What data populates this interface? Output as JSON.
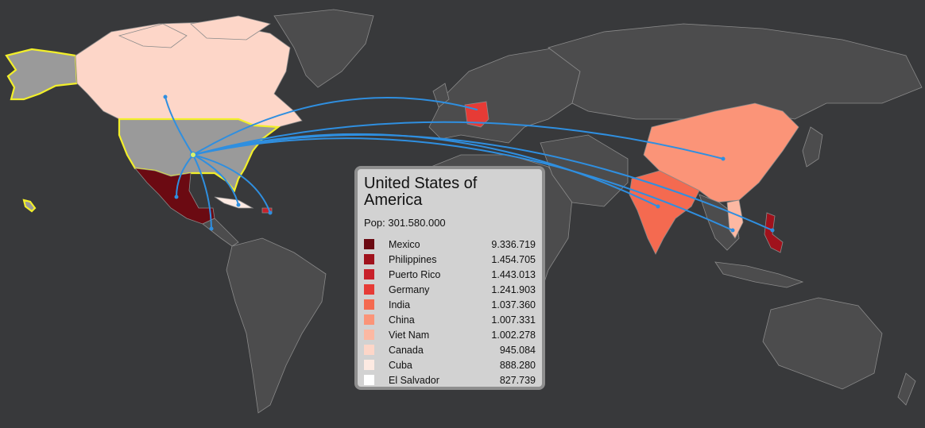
{
  "map": {
    "selected_country": "United States of America",
    "population_label": "Pop: 301.580.000",
    "background_color": "#38393b",
    "land_color": "#4c4c4d",
    "border_color": "#8a8a8a",
    "selection_outline_color": "#f2ef2a",
    "flow_color": "#2f8fe0"
  },
  "legend": {
    "items": [
      {
        "name": "Mexico",
        "value": "9.336.719",
        "color": "#6b0a12"
      },
      {
        "name": "Philippines",
        "value": "1.454.705",
        "color": "#a0121c"
      },
      {
        "name": "Puerto Rico",
        "value": "1.443.013",
        "color": "#c8202a"
      },
      {
        "name": "Germany",
        "value": "1.241.903",
        "color": "#e63b36"
      },
      {
        "name": "India",
        "value": "1.037.360",
        "color": "#f46a50"
      },
      {
        "name": "China",
        "value": "1.007.331",
        "color": "#fb9478"
      },
      {
        "name": "Viet Nam",
        "value": "1.002.278",
        "color": "#fcb8a2"
      },
      {
        "name": "Canada",
        "value": "945.084",
        "color": "#fdd6c8"
      },
      {
        "name": "Cuba",
        "value": "888.280",
        "color": "#fdeae2"
      },
      {
        "name": "El Salvador",
        "value": "827.739",
        "color": "#ffffff"
      }
    ]
  }
}
